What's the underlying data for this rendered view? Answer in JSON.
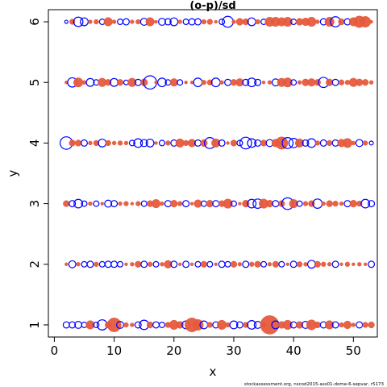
{
  "chart_data": {
    "type": "scatter",
    "title": "(o-p)/sd",
    "xlabel": "x",
    "ylabel": "y",
    "xlim": [
      -1,
      54
    ],
    "ylim": [
      0.8,
      6.2
    ],
    "xticks": [
      0,
      10,
      20,
      30,
      40,
      50
    ],
    "yticks": [
      1,
      2,
      3,
      4,
      5,
      6
    ],
    "grid": false,
    "colors": {
      "positive": "#E65A3C",
      "negative": "#0000FF"
    },
    "series": [
      {
        "y": 6,
        "x": [
          2,
          3,
          4,
          5,
          6,
          7,
          8,
          9,
          10,
          11,
          12,
          13,
          14,
          15,
          16,
          17,
          18,
          19,
          20,
          21,
          22,
          23,
          24,
          25,
          26,
          27,
          28,
          29,
          30,
          31,
          32,
          33,
          34,
          35,
          36,
          37,
          38,
          39,
          40,
          41,
          42,
          43,
          44,
          45,
          46,
          47,
          48,
          49,
          50,
          51,
          52,
          53
        ],
        "resid": [
          -0.2,
          0.5,
          -1.0,
          -0.8,
          0.3,
          0.4,
          -0.5,
          0.9,
          0.3,
          -0.5,
          -0.6,
          0.3,
          0.4,
          -0.7,
          0.9,
          0.2,
          -0.7,
          -0.6,
          -0.8,
          0.3,
          -0.5,
          -0.6,
          -0.6,
          0.4,
          0.5,
          0.2,
          -0.5,
          -1.2,
          0.3,
          0.7,
          0.6,
          -0.8,
          0.4,
          -0.5,
          1.0,
          1.0,
          0.9,
          1.0,
          -0.5,
          0.7,
          0.8,
          1.0,
          0.3,
          -0.6,
          1.0,
          -1.1,
          0.6,
          -0.6,
          0.9,
          1.3,
          1.2,
          0.2
        ]
      },
      {
        "y": 5,
        "x": [
          2,
          3,
          4,
          5,
          6,
          7,
          8,
          9,
          10,
          11,
          12,
          13,
          14,
          15,
          16,
          17,
          18,
          19,
          20,
          21,
          22,
          23,
          24,
          25,
          26,
          27,
          28,
          29,
          30,
          31,
          32,
          33,
          34,
          35,
          36,
          37,
          38,
          39,
          40,
          41,
          42,
          43,
          44,
          45,
          46,
          47,
          48,
          49,
          50,
          51,
          52,
          53
        ],
        "resid": [
          0.2,
          -1.0,
          1.0,
          0.3,
          -0.8,
          -0.5,
          0.9,
          0.6,
          -0.8,
          0.6,
          -0.4,
          0.9,
          -0.6,
          0.7,
          -1.5,
          0.2,
          -0.9,
          -0.5,
          0.8,
          -0.5,
          0.2,
          0.2,
          -0.9,
          0.4,
          0.5,
          -0.9,
          0.3,
          -0.6,
          0.6,
          0.8,
          -0.6,
          -0.9,
          -0.6,
          0.2,
          0.3,
          -0.7,
          0.9,
          1.0,
          -0.5,
          0.3,
          0.7,
          0.8,
          0.6,
          -1.1,
          0.7,
          -0.6,
          0.5,
          0.4,
          0.9,
          0.7,
          0.6,
          0.3
        ]
      },
      {
        "y": 4,
        "x": [
          2,
          3,
          4,
          5,
          6,
          7,
          8,
          9,
          10,
          11,
          12,
          13,
          14,
          15,
          16,
          17,
          18,
          19,
          20,
          21,
          22,
          23,
          24,
          25,
          26,
          27,
          28,
          29,
          30,
          31,
          32,
          33,
          34,
          35,
          36,
          37,
          38,
          39,
          40,
          41,
          42,
          43,
          44,
          45,
          46,
          47,
          48,
          49,
          50,
          51,
          52,
          53
        ],
        "resid": [
          -1.4,
          0.6,
          0.6,
          -0.6,
          0.3,
          0.5,
          -0.8,
          0.5,
          0.3,
          0.4,
          0.3,
          -0.5,
          -0.9,
          -0.7,
          -0.8,
          0.2,
          -0.5,
          0.4,
          -0.6,
          0.9,
          0.5,
          0.8,
          -0.6,
          0.7,
          -1.2,
          0.9,
          -0.6,
          0.2,
          0.6,
          -0.5,
          -1.3,
          -0.9,
          -0.6,
          0.6,
          -0.7,
          0.8,
          1.4,
          -1.2,
          -1.0,
          0.9,
          -0.6,
          -0.9,
          0.4,
          -0.6,
          0.5,
          -0.6,
          0.8,
          1.0,
          0.3,
          -0.7,
          0.4,
          -0.3
        ]
      },
      {
        "y": 3,
        "x": [
          2,
          3,
          4,
          5,
          6,
          7,
          8,
          9,
          10,
          11,
          12,
          13,
          14,
          15,
          16,
          17,
          18,
          19,
          20,
          21,
          22,
          23,
          24,
          25,
          26,
          27,
          28,
          29,
          30,
          31,
          32,
          33,
          34,
          35,
          36,
          37,
          38,
          39,
          40,
          41,
          42,
          43,
          44,
          45,
          46,
          47,
          48,
          49,
          50,
          51,
          52,
          53
        ],
        "resid": [
          0.6,
          -0.6,
          -0.9,
          -0.5,
          0.3,
          -0.5,
          0.2,
          -0.7,
          -0.6,
          0.3,
          0.4,
          0.2,
          0.4,
          -0.5,
          0.6,
          0.9,
          0.3,
          -0.6,
          0.7,
          0.4,
          -0.6,
          0.2,
          0.8,
          -0.5,
          0.7,
          -0.6,
          0.6,
          1.0,
          -0.5,
          0.2,
          0.7,
          -0.9,
          -1.0,
          1.0,
          0.7,
          -0.6,
          0.6,
          -1.3,
          0.9,
          -0.5,
          0.4,
          0.6,
          -1.0,
          0.3,
          0.6,
          0.5,
          0.3,
          -0.6,
          0.7,
          0.5,
          -0.9,
          -0.6
        ]
      },
      {
        "y": 2,
        "x": [
          2,
          3,
          4,
          5,
          6,
          7,
          8,
          9,
          10,
          11,
          12,
          13,
          14,
          15,
          16,
          17,
          18,
          19,
          20,
          21,
          22,
          23,
          24,
          25,
          26,
          27,
          28,
          29,
          30,
          31,
          32,
          33,
          34,
          35,
          36,
          37,
          38,
          39,
          40,
          41,
          42,
          43,
          44,
          45,
          46,
          47,
          48,
          49,
          50,
          51,
          52,
          53
        ],
        "resid": [
          0.2,
          -0.7,
          0.3,
          -0.5,
          -0.6,
          0.4,
          -0.5,
          -0.6,
          -0.6,
          -0.5,
          0.2,
          0.3,
          0.6,
          -0.6,
          0.4,
          -0.5,
          0.3,
          0.8,
          -0.6,
          0.2,
          -0.6,
          0.2,
          -0.5,
          0.6,
          -0.5,
          0.2,
          -0.6,
          -0.5,
          0.6,
          0.3,
          -0.6,
          0.4,
          0.6,
          -0.5,
          0.3,
          0.6,
          -0.5,
          0.2,
          -0.6,
          0.5,
          0.3,
          -0.8,
          0.6,
          0.4,
          0.3,
          -0.6,
          0.2,
          0.4,
          0.2,
          0.3,
          0.2,
          -0.6
        ]
      },
      {
        "y": 1,
        "x": [
          2,
          3,
          4,
          5,
          6,
          7,
          8,
          9,
          10,
          11,
          12,
          13,
          14,
          15,
          16,
          17,
          18,
          19,
          20,
          21,
          22,
          23,
          24,
          25,
          26,
          27,
          28,
          29,
          30,
          31,
          32,
          33,
          34,
          35,
          36,
          37,
          38,
          39,
          40,
          41,
          42,
          43,
          44,
          45,
          46,
          47,
          48,
          49,
          50,
          51,
          52,
          53
        ],
        "resid": [
          -0.6,
          -0.6,
          -0.7,
          -0.5,
          0.9,
          -0.5,
          -1.1,
          0.6,
          1.6,
          -0.7,
          0.4,
          0.3,
          -0.6,
          -1.0,
          0.6,
          -0.6,
          -0.5,
          0.5,
          1.0,
          0.7,
          -0.8,
          1.6,
          1.2,
          -0.8,
          0.5,
          -0.6,
          1.0,
          0.4,
          -0.8,
          -0.6,
          0.5,
          -0.9,
          -0.7,
          0.4,
          2.2,
          -0.8,
          0.7,
          1.0,
          -0.6,
          0.7,
          -0.7,
          1.1,
          0.6,
          -0.6,
          0.9,
          -0.6,
          0.4,
          0.8,
          0.3,
          -0.6,
          0.5,
          0.6
        ]
      }
    ]
  },
  "footnote": "stockassessment.org, nscod2015-ass01-dome-6-sepvar, r5173"
}
